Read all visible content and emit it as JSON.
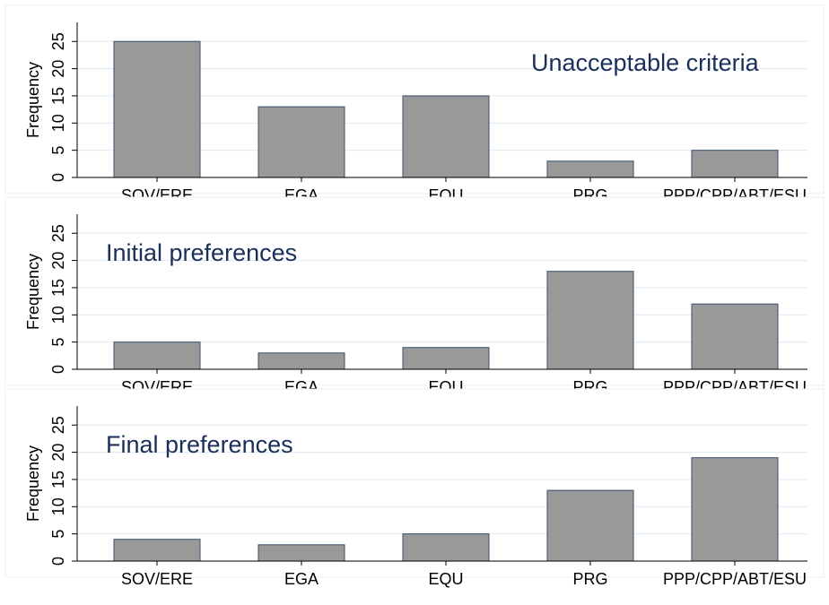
{
  "chart_data": [
    {
      "type": "bar",
      "title": "Unacceptable criteria",
      "y_label": "Frequency",
      "categories": [
        "SOV/ERE",
        "EGA",
        "EQU",
        "PRG",
        "PPP/CPP/ABT/ESU"
      ],
      "values": [
        25,
        13,
        15,
        3,
        5
      ],
      "color": "#999999",
      "ylim": [
        0,
        28.5
      ],
      "yticks": [
        0,
        5,
        10,
        15,
        20,
        25
      ],
      "grid": true
    },
    {
      "type": "bar",
      "title": "Initial preferences",
      "y_label": "Frequency",
      "categories": [
        "SOV/ERE",
        "EGA",
        "EQU",
        "PRG",
        "PPP/CPP/ABT/ESU"
      ],
      "values": [
        5,
        3,
        4,
        18,
        12
      ],
      "color": "#999999",
      "ylim": [
        0,
        28.5
      ],
      "yticks": [
        0,
        5,
        10,
        15,
        20,
        25
      ],
      "grid": true
    },
    {
      "type": "bar",
      "title": "Final preferences",
      "y_label": "Frequency",
      "categories": [
        "SOV/ERE",
        "EGA",
        "EQU",
        "PRG",
        "PPP/CPP/ABT/ESU"
      ],
      "values": [
        4,
        3,
        5,
        13,
        19
      ],
      "color": "#999999",
      "ylim": [
        0,
        28.5
      ],
      "yticks": [
        0,
        5,
        10,
        15,
        20,
        25
      ],
      "grid": true
    }
  ]
}
